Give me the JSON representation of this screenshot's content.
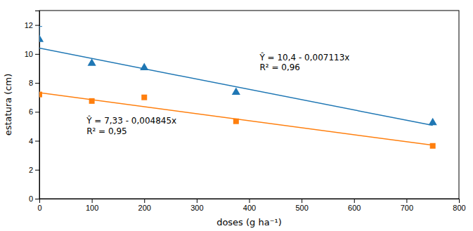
{
  "chart_data": {
    "type": "scatter",
    "xlabel": "doses (g ha⁻¹)",
    "ylabel": "estatura (cm)",
    "xlim": [
      0,
      800
    ],
    "ylim": [
      0,
      13
    ],
    "xticks": [
      0,
      100,
      200,
      300,
      400,
      500,
      600,
      700,
      800
    ],
    "yticks": [
      0,
      2,
      4,
      6,
      8,
      10,
      12
    ],
    "grid": false,
    "series": [
      {
        "type": "line",
        "line_style": "solid",
        "x": [
          0,
          750
        ],
        "values": [
          10.4,
          5.06525
        ]
      },
      {
        "type": "scatter",
        "marker": "triangle",
        "x": [
          0,
          100,
          200,
          375,
          750
        ],
        "values": [
          11.0,
          9.35,
          9.05,
          7.35,
          5.25
        ],
        "yerr": [
          {
            "minus": 0.0,
            "plus": 0.9
          },
          null,
          null,
          null,
          null
        ]
      },
      {
        "type": "line",
        "line_style": "solid",
        "x": [
          0,
          750
        ],
        "values": [
          7.33,
          3.69625
        ]
      },
      {
        "type": "scatter",
        "marker": "square",
        "x": [
          0,
          100,
          200,
          375,
          750
        ],
        "values": [
          7.2,
          6.75,
          7.0,
          5.35,
          3.65
        ]
      }
    ],
    "annotations": [
      {
        "x": 420,
        "y": 10.1,
        "lines": [
          "Ŷ = 10,4 - 0,007113x",
          "R² = 0,96"
        ]
      },
      {
        "x": 90,
        "y": 5.7,
        "lines": [
          "Ŷ = 7,33 - 0,004845x",
          "R² = 0,95"
        ]
      }
    ]
  }
}
